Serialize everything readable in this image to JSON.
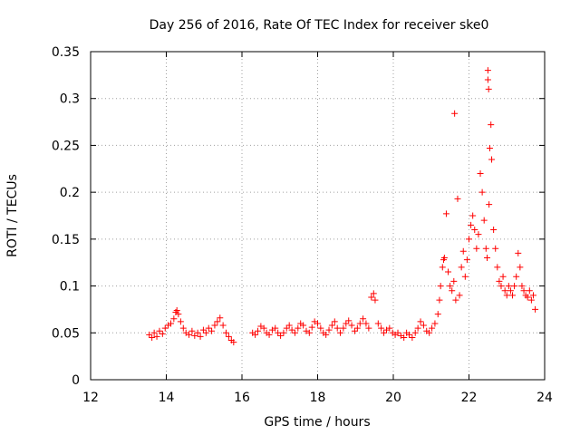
{
  "chart_data": {
    "type": "scatter",
    "title": "Day 256 of 2016, Rate Of TEC Index for receiver ske0",
    "xlabel": "GPS time / hours",
    "ylabel": "ROTI / TECUs",
    "xlim": [
      12,
      24
    ],
    "ylim": [
      0,
      0.35
    ],
    "x_ticks": [
      12,
      14,
      16,
      18,
      20,
      22,
      24
    ],
    "x_tick_labels": [
      "12",
      "14",
      "16",
      "18",
      "20",
      "22",
      "24"
    ],
    "y_ticks": [
      0,
      0.05,
      0.1,
      0.15,
      0.2,
      0.25,
      0.3,
      0.35
    ],
    "y_tick_labels": [
      "0",
      "0.05",
      "0.1",
      "0.15",
      "0.2",
      "0.25",
      "0.3",
      "0.35"
    ],
    "grid": true,
    "marker": "+",
    "series": [
      {
        "name": "ROTI",
        "color": "#ff0000",
        "x": [
          13.55,
          13.62,
          13.68,
          13.75,
          13.82,
          13.9,
          13.97,
          14.05,
          14.12,
          14.2,
          14.25,
          14.28,
          14.32,
          14.38,
          14.45,
          14.52,
          14.6,
          14.68,
          14.75,
          14.83,
          14.9,
          14.98,
          15.05,
          15.12,
          15.2,
          15.28,
          15.35,
          15.42,
          15.5,
          15.58,
          15.65,
          15.72,
          15.78,
          16.28,
          16.35,
          16.42,
          16.5,
          16.58,
          16.65,
          16.72,
          16.8,
          16.88,
          16.95,
          17.02,
          17.1,
          17.18,
          17.25,
          17.32,
          17.4,
          17.48,
          17.55,
          17.62,
          17.7,
          17.78,
          17.85,
          17.92,
          18.0,
          18.08,
          18.15,
          18.22,
          18.3,
          18.38,
          18.45,
          18.52,
          18.6,
          18.68,
          18.75,
          18.82,
          18.9,
          18.98,
          19.05,
          19.12,
          19.2,
          19.28,
          19.35,
          19.42,
          19.48,
          19.52,
          19.6,
          19.68,
          19.75,
          19.82,
          19.9,
          19.98,
          20.05,
          20.12,
          20.2,
          20.28,
          20.35,
          20.42,
          20.5,
          20.58,
          20.65,
          20.72,
          20.8,
          20.88,
          20.95,
          21.02,
          21.1,
          21.18,
          21.22,
          21.25,
          21.3,
          21.33,
          21.35,
          21.4,
          21.45,
          21.5,
          21.55,
          21.6,
          21.62,
          21.65,
          21.7,
          21.75,
          21.8,
          21.85,
          21.9,
          21.95,
          22.0,
          22.05,
          22.1,
          22.15,
          22.2,
          22.25,
          22.3,
          22.35,
          22.4,
          22.45,
          22.48,
          22.5,
          22.5,
          22.52,
          22.53,
          22.55,
          22.58,
          22.6,
          22.65,
          22.7,
          22.75,
          22.8,
          22.85,
          22.9,
          22.95,
          23.0,
          23.05,
          23.1,
          23.15,
          23.2,
          23.25,
          23.3,
          23.35,
          23.4,
          23.45,
          23.5,
          23.55,
          23.6,
          23.65,
          23.7,
          23.75
        ],
        "y": [
          0.048,
          0.045,
          0.05,
          0.046,
          0.052,
          0.049,
          0.055,
          0.058,
          0.06,
          0.065,
          0.072,
          0.074,
          0.07,
          0.062,
          0.055,
          0.05,
          0.048,
          0.052,
          0.047,
          0.05,
          0.046,
          0.053,
          0.05,
          0.055,
          0.052,
          0.058,
          0.062,
          0.066,
          0.058,
          0.05,
          0.046,
          0.042,
          0.04,
          0.05,
          0.048,
          0.052,
          0.057,
          0.055,
          0.05,
          0.048,
          0.053,
          0.055,
          0.05,
          0.047,
          0.05,
          0.055,
          0.058,
          0.053,
          0.05,
          0.055,
          0.06,
          0.058,
          0.052,
          0.05,
          0.056,
          0.062,
          0.06,
          0.055,
          0.05,
          0.048,
          0.053,
          0.058,
          0.062,
          0.055,
          0.05,
          0.055,
          0.06,
          0.063,
          0.058,
          0.052,
          0.055,
          0.06,
          0.065,
          0.06,
          0.055,
          0.088,
          0.092,
          0.085,
          0.06,
          0.055,
          0.05,
          0.053,
          0.055,
          0.05,
          0.048,
          0.05,
          0.047,
          0.045,
          0.05,
          0.048,
          0.045,
          0.05,
          0.055,
          0.062,
          0.058,
          0.052,
          0.05,
          0.055,
          0.06,
          0.07,
          0.085,
          0.1,
          0.12,
          0.128,
          0.13,
          0.177,
          0.115,
          0.1,
          0.095,
          0.105,
          0.284,
          0.085,
          0.193,
          0.09,
          0.12,
          0.137,
          0.11,
          0.128,
          0.15,
          0.165,
          0.175,
          0.16,
          0.14,
          0.155,
          0.22,
          0.2,
          0.17,
          0.14,
          0.13,
          0.33,
          0.32,
          0.31,
          0.187,
          0.247,
          0.272,
          0.235,
          0.16,
          0.14,
          0.12,
          0.105,
          0.1,
          0.11,
          0.095,
          0.09,
          0.1,
          0.095,
          0.09,
          0.1,
          0.11,
          0.135,
          0.12,
          0.1,
          0.095,
          0.09,
          0.088,
          0.095,
          0.085,
          0.09,
          0.075
        ]
      }
    ]
  }
}
